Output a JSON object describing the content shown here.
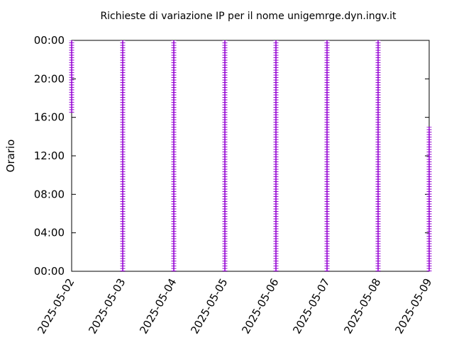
{
  "chart_data": {
    "type": "range",
    "title": "Richieste di variazione IP per il nome unigemrge.dyn.ingv.it",
    "ylabel": "Orario",
    "xlim": [
      "2025-05-02",
      "2025-05-09"
    ],
    "xticks": [
      "2025-05-02",
      "2025-05-03",
      "2025-05-04",
      "2025-05-05",
      "2025-05-06",
      "2025-05-07",
      "2025-05-08",
      "2025-05-09"
    ],
    "ylim": [
      0,
      24
    ],
    "yticks": [
      {
        "value": 0,
        "label": "00:00"
      },
      {
        "value": 4,
        "label": "04:00"
      },
      {
        "value": 8,
        "label": "08:00"
      },
      {
        "value": 12,
        "label": "12:00"
      },
      {
        "value": 16,
        "label": "16:00"
      },
      {
        "value": 20,
        "label": "20:00"
      },
      {
        "value": 24,
        "label": "00:00"
      }
    ],
    "color": "#9400d3",
    "x": [
      "2025-05-02",
      "2025-05-03",
      "2025-05-04",
      "2025-05-05",
      "2025-05-06",
      "2025-05-07",
      "2025-05-08",
      "2025-05-09"
    ],
    "low": [
      16.5,
      0,
      0,
      0,
      0,
      0,
      0,
      0
    ],
    "high": [
      24,
      24,
      24,
      24,
      24,
      24,
      24,
      15
    ]
  }
}
